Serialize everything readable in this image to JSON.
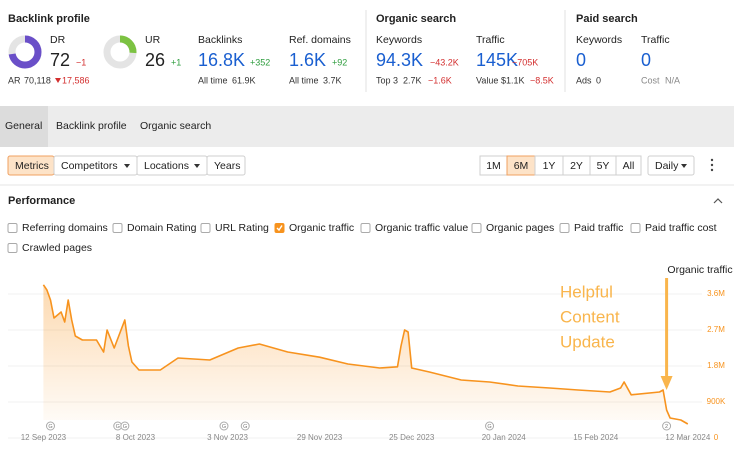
{
  "metrics_panel": {
    "backlink_profile": {
      "title": "Backlink profile",
      "dr": {
        "label": "DR",
        "value": 72,
        "change": "−1"
      },
      "ar": {
        "label": "AR",
        "value": "70,118",
        "change": "17,586"
      },
      "ur": {
        "label": "UR",
        "value": 26,
        "change": "+1"
      },
      "backlinks": {
        "label": "Backlinks",
        "value": "16.8K",
        "change": "+352",
        "sub_label": "All time",
        "sub_value": "61.9K"
      },
      "ref_domains": {
        "label": "Ref. domains",
        "value": "1.6K",
        "change": "+92",
        "sub_label": "All time",
        "sub_value": "3.7K"
      }
    },
    "organic_search": {
      "title": "Organic search",
      "keywords": {
        "label": "Keywords",
        "value": "94.3K",
        "change": "−43.2K",
        "sub_label": "Top 3",
        "sub_value": "2.7K",
        "sub_change": "−1.6K"
      },
      "traffic": {
        "label": "Traffic",
        "value": "145K",
        "change": "−705K",
        "sub_label": "Value",
        "sub_value": "$1.1K",
        "sub_change": "−8.5K"
      }
    },
    "paid_search": {
      "title": "Paid search",
      "keywords": {
        "label": "Keywords",
        "value": 0,
        "sub_label": "Ads",
        "sub_value": 0
      },
      "traffic": {
        "label": "Traffic",
        "value": 0,
        "sub_label": "Cost",
        "sub_value": "N/A"
      }
    }
  },
  "tabs": [
    {
      "label": "General",
      "active": true
    },
    {
      "label": "Backlink profile",
      "active": false
    },
    {
      "label": "Organic search",
      "active": false
    }
  ],
  "filters": [
    {
      "label": "Metrics",
      "active": true,
      "dropdown": false
    },
    {
      "label": "Competitors",
      "active": false,
      "dropdown": true
    },
    {
      "label": "Locations",
      "active": false,
      "dropdown": true
    },
    {
      "label": "Years",
      "active": false,
      "dropdown": false
    }
  ],
  "periods": [
    {
      "label": "1M",
      "active": false
    },
    {
      "label": "6M",
      "active": true
    },
    {
      "label": "1Y",
      "active": false
    },
    {
      "label": "2Y",
      "active": false
    },
    {
      "label": "5Y",
      "active": false
    },
    {
      "label": "All",
      "active": false
    }
  ],
  "interval": "Daily",
  "section_title": "Performance",
  "metric_toggles": [
    {
      "label": "Referring domains",
      "checked": false
    },
    {
      "label": "Domain Rating",
      "checked": false
    },
    {
      "label": "URL Rating",
      "checked": false
    },
    {
      "label": "Organic traffic",
      "checked": true
    },
    {
      "label": "Organic traffic value",
      "checked": false
    },
    {
      "label": "Organic pages",
      "checked": false
    },
    {
      "label": "Paid traffic",
      "checked": false
    },
    {
      "label": "Paid traffic cost",
      "checked": false
    },
    {
      "label": "Crawled pages",
      "checked": false
    }
  ],
  "chart_data": {
    "type": "area",
    "x": [
      "2023-09-12",
      "2023-09-13",
      "2023-09-14",
      "2023-09-15",
      "2023-09-17",
      "2023-09-18",
      "2023-09-19",
      "2023-09-20",
      "2023-09-21",
      "2023-09-23",
      "2023-09-27",
      "2023-09-29",
      "2023-09-30",
      "2023-10-02",
      "2023-10-05",
      "2023-10-06",
      "2023-10-07",
      "2023-10-09",
      "2023-10-15",
      "2023-10-20",
      "2023-10-29",
      "2023-11-06",
      "2023-11-12",
      "2023-11-20",
      "2023-11-29",
      "2023-12-07",
      "2023-12-16",
      "2023-12-21",
      "2023-12-22",
      "2023-12-23",
      "2023-12-24",
      "2023-12-25",
      "2023-12-30",
      "2024-01-08",
      "2024-01-16",
      "2024-01-24",
      "2024-02-02",
      "2024-02-10",
      "2024-02-19",
      "2024-02-22",
      "2024-02-23",
      "2024-02-25",
      "2024-03-04",
      "2024-03-05",
      "2024-03-06",
      "2024-03-07",
      "2024-03-10",
      "2024-03-12"
    ],
    "series": [
      {
        "name": "Organic traffic",
        "color": "#f7931e",
        "axis": "y2",
        "values": [
          3830000,
          3700000,
          3450000,
          3000000,
          3150000,
          2900000,
          3450000,
          2950000,
          2550000,
          2450000,
          2450000,
          2150000,
          2700000,
          2250000,
          2950000,
          2300000,
          1900000,
          1700000,
          1700000,
          2000000,
          1950000,
          2250000,
          2350000,
          2150000,
          2020000,
          1850000,
          1750000,
          1780000,
          2300000,
          2700000,
          2650000,
          1750000,
          1650000,
          1450000,
          1400000,
          1300000,
          1250000,
          1200000,
          1150000,
          1250000,
          1400000,
          1080000,
          1150000,
          1200000,
          700000,
          500000,
          450000,
          350000
        ]
      }
    ],
    "xlim": [
      "2023-09-02",
      "2024-03-16"
    ],
    "xticks": [
      {
        "value": "2023-09-12",
        "label": "12 Sep 2023"
      },
      {
        "value": "2023-10-08",
        "label": "8 Oct 2023"
      },
      {
        "value": "2023-11-03",
        "label": "3 Nov 2023"
      },
      {
        "value": "2023-11-29",
        "label": "29 Nov 2023"
      },
      {
        "value": "2023-12-25",
        "label": "25 Dec 2023"
      },
      {
        "value": "2024-01-20",
        "label": "20 Jan 2024"
      },
      {
        "value": "2024-02-15",
        "label": "15 Feb 2024"
      },
      {
        "value": "2024-03-12",
        "label": "12 Mar 2024"
      }
    ],
    "y2lim": [
      0,
      4000000
    ],
    "y2ticks": [
      0,
      {
        "value": 900000,
        "label": "900K"
      },
      {
        "value": 1800000,
        "label": "1.8M"
      },
      {
        "value": 2700000,
        "label": "2.7M"
      },
      {
        "value": 3600000,
        "label": "3.6M"
      }
    ],
    "grid": true,
    "event_markers": [
      {
        "x": "2023-09-14",
        "label": "G"
      },
      {
        "x": "2023-10-03",
        "label": "G"
      },
      {
        "x": "2023-10-05",
        "label": "G"
      },
      {
        "x": "2023-11-02",
        "label": "G"
      },
      {
        "x": "2023-11-08",
        "label": "G"
      },
      {
        "x": "2024-01-16",
        "label": "G"
      },
      {
        "x": "2024-03-06",
        "label": "2"
      }
    ],
    "annotation": {
      "lines": [
        "Helpful",
        "Content",
        "Update"
      ],
      "x": "2024-03-06",
      "color": "#f9b54c"
    }
  }
}
